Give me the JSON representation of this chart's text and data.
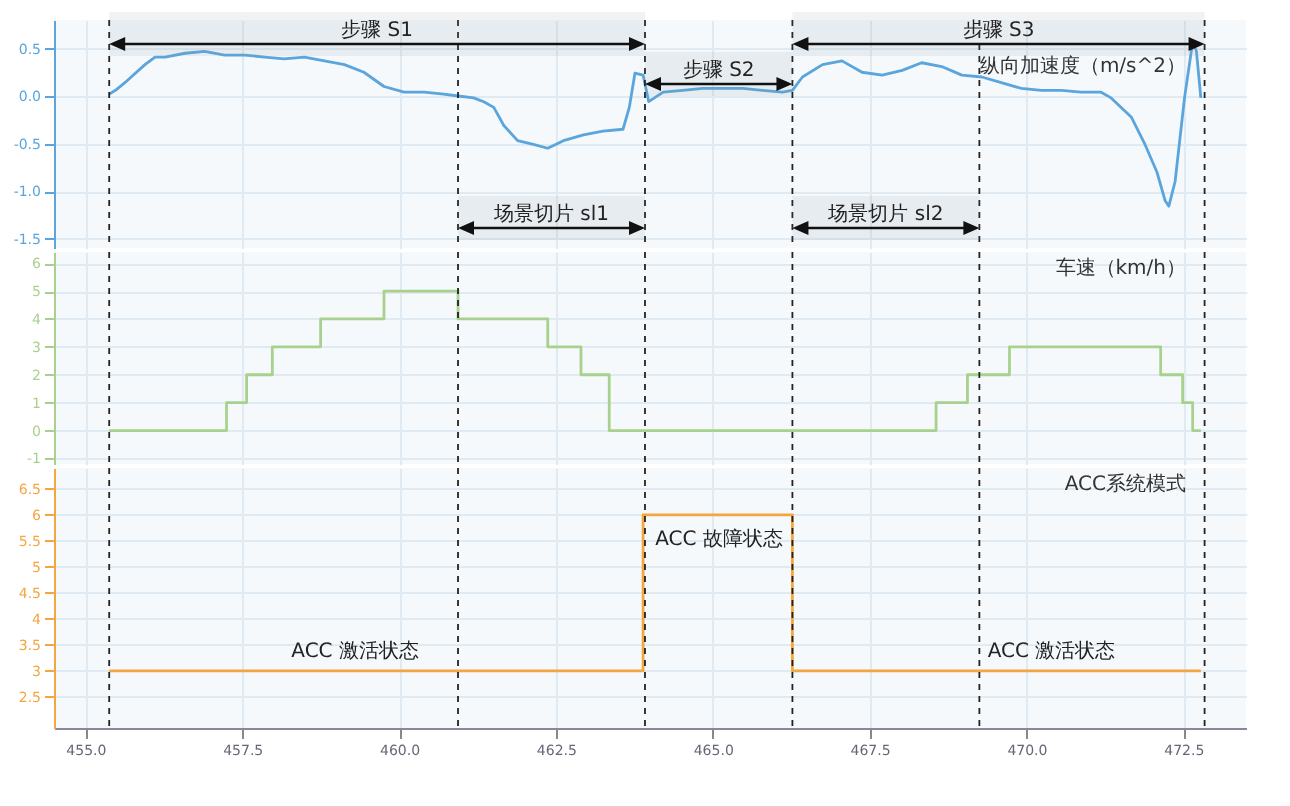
{
  "chart_data": [
    {
      "type": "line",
      "ylabel": "纵向加速度（m/s^2）",
      "color": "#5aa5dc",
      "grid": true,
      "tick_labels": "y",
      "xlim": [
        454.5,
        473.5
      ],
      "xticks": [
        455,
        457.5,
        460,
        462.5,
        465,
        467.5,
        470,
        472.5
      ],
      "ylim": [
        -1.6,
        0.8
      ],
      "yticks": [
        {
          "value": -1.5,
          "label": "-1.5"
        },
        {
          "value": -1,
          "label": "-1.0"
        },
        {
          "value": -0.5,
          "label": "-0.5"
        },
        {
          "value": 0,
          "label": "0.0"
        },
        {
          "value": 0.5,
          "label": "0.5"
        }
      ],
      "x": [
        455.38,
        455.48,
        455.63,
        455.73,
        455.95,
        456.11,
        456.27,
        456.59,
        456.9,
        457.22,
        457.54,
        457.86,
        458.17,
        458.49,
        458.81,
        459.13,
        459.44,
        459.76,
        460.08,
        460.4,
        460.71,
        460.94,
        461.19,
        461.35,
        461.51,
        461.67,
        461.89,
        462.14,
        462.37,
        462.62,
        462.94,
        463.25,
        463.57,
        463.67,
        463.76,
        463.89,
        463.98,
        464.21,
        464.52,
        464.84,
        465.16,
        465.48,
        465.79,
        466.11,
        466.27,
        466.43,
        466.75,
        467.06,
        467.38,
        467.7,
        468.02,
        468.33,
        468.65,
        468.97,
        469.29,
        469.6,
        469.92,
        470.24,
        470.56,
        470.87,
        471.19,
        471.35,
        471.67,
        471.89,
        472.08,
        472.21,
        472.27,
        472.37,
        472.52,
        472.65,
        472.71,
        472.78
      ],
      "values": [
        0.02,
        0.06,
        0.14,
        0.2,
        0.33,
        0.41,
        0.41,
        0.45,
        0.47,
        0.43,
        0.43,
        0.41,
        0.39,
        0.41,
        0.37,
        0.33,
        0.25,
        0.1,
        0.04,
        0.04,
        0.02,
        0,
        -0.02,
        -0.06,
        -0.12,
        -0.31,
        -0.47,
        -0.51,
        -0.55,
        -0.47,
        -0.41,
        -0.37,
        -0.35,
        -0.12,
        0.24,
        0.22,
        -0.06,
        0.04,
        0.06,
        0.08,
        0.08,
        0.08,
        0.06,
        0.04,
        0.06,
        0.2,
        0.33,
        0.37,
        0.25,
        0.22,
        0.27,
        0.35,
        0.31,
        0.22,
        0.2,
        0.14,
        0.08,
        0.06,
        0.06,
        0.04,
        0.04,
        -0.02,
        -0.22,
        -0.51,
        -0.8,
        -1.1,
        -1.16,
        -0.9,
        -0.02,
        0.57,
        0.47,
        -0.02
      ],
      "ref_lines": [
        {
          "axis": "x",
          "value": 455.38,
          "line_style": "dashed"
        },
        {
          "axis": "x",
          "value": 460.94,
          "line_style": "dashed"
        },
        {
          "axis": "x",
          "value": 463.92,
          "line_style": "dashed"
        },
        {
          "axis": "x",
          "value": 466.27,
          "line_style": "dashed"
        },
        {
          "axis": "x",
          "value": 469.25,
          "line_style": "dashed"
        },
        {
          "axis": "x",
          "value": 472.84,
          "line_style": "dashed"
        }
      ],
      "bands": [
        {
          "axis": "x",
          "from": 455.38,
          "to": 463.92,
          "label": "步骤 S1"
        },
        {
          "axis": "x",
          "from": 463.92,
          "to": 466.27,
          "label": "步骤 S2"
        },
        {
          "axis": "x",
          "from": 466.27,
          "to": 472.84,
          "label": "步骤 S3"
        },
        {
          "axis": "x",
          "from": 460.94,
          "to": 463.92,
          "label": "场景切片 sl1"
        },
        {
          "axis": "x",
          "from": 466.27,
          "to": 469.25,
          "label": "场景切片 sl2"
        }
      ]
    },
    {
      "type": "step",
      "ylabel": "车速（km/h）",
      "color": "#a9d18e",
      "grid": true,
      "tick_labels": "y",
      "xlim": [
        454.5,
        473.5
      ],
      "xticks": [
        455,
        457.5,
        460,
        462.5,
        465,
        467.5,
        470,
        472.5
      ],
      "ylim": [
        -1.2,
        6.4
      ],
      "yticks": [
        -1,
        0,
        1,
        2,
        3,
        4,
        5,
        6
      ],
      "x": [
        455.38,
        457.25,
        457.57,
        457.98,
        458.75,
        459.76,
        460.94,
        462.37,
        462.9,
        463.35,
        468.56,
        469.06,
        469.73,
        472.14,
        472.49,
        472.65,
        472.78
      ],
      "values": [
        0,
        1,
        2,
        3,
        4,
        5,
        4,
        3,
        2,
        0,
        1,
        2,
        3,
        2,
        1,
        0,
        0
      ],
      "ref_lines": [
        {
          "axis": "x",
          "value": 455.38,
          "line_style": "dashed"
        },
        {
          "axis": "x",
          "value": 460.94,
          "line_style": "dashed"
        },
        {
          "axis": "x",
          "value": 463.92,
          "line_style": "dashed"
        },
        {
          "axis": "x",
          "value": 466.27,
          "line_style": "dashed"
        },
        {
          "axis": "x",
          "value": 469.25,
          "line_style": "dashed"
        },
        {
          "axis": "x",
          "value": 472.84,
          "line_style": "dashed"
        }
      ]
    },
    {
      "type": "step",
      "ylabel": "ACC系统模式",
      "color": "#f4a640",
      "grid": true,
      "xlim": [
        454.5,
        473.5
      ],
      "xticks": [
        {
          "value": 455,
          "label": "455.0"
        },
        {
          "value": 457.5,
          "label": "457.5"
        },
        {
          "value": 460,
          "label": "460.0"
        },
        {
          "value": 462.5,
          "label": "462.5"
        },
        {
          "value": 465,
          "label": "465.0"
        },
        {
          "value": 467.5,
          "label": "467.5"
        },
        {
          "value": 470,
          "label": "470.0"
        },
        {
          "value": 472.5,
          "label": "472.5"
        }
      ],
      "ylim": [
        1.9,
        6.9
      ],
      "yticks": [
        2.5,
        3,
        3.5,
        4,
        4.5,
        5,
        5.5,
        6,
        6.5
      ],
      "x": [
        455.38,
        463.89,
        466.27,
        472.78
      ],
      "values": [
        3,
        6,
        3,
        3
      ],
      "annotations": [
        {
          "text": "ACC 激活状态",
          "x": 459.3,
          "y": 3
        },
        {
          "text": "ACC 故障状态",
          "x": 465.1,
          "y": 6
        },
        {
          "text": "ACC 激活状态",
          "x": 470.4,
          "y": 3
        }
      ],
      "ref_lines": [
        {
          "axis": "x",
          "value": 455.38,
          "line_style": "dashed"
        },
        {
          "axis": "x",
          "value": 460.94,
          "line_style": "dashed"
        },
        {
          "axis": "x",
          "value": 463.92,
          "line_style": "dashed"
        },
        {
          "axis": "x",
          "value": 466.27,
          "line_style": "dashed"
        },
        {
          "axis": "x",
          "value": 469.25,
          "line_style": "dashed"
        },
        {
          "axis": "x",
          "value": 472.84,
          "line_style": "dashed"
        }
      ]
    }
  ]
}
